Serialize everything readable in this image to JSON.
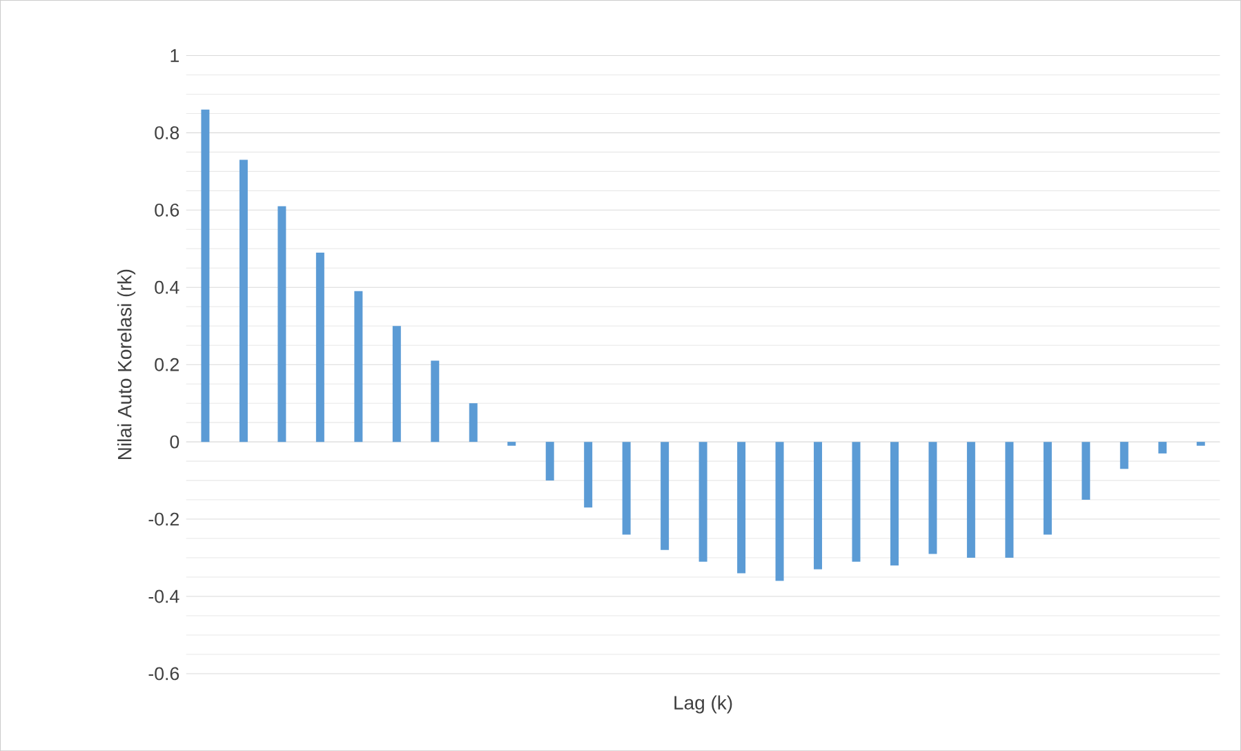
{
  "chart_data": {
    "type": "bar",
    "xlabel": "Lag (k)",
    "ylabel": "Nilai Auto Korelasi (rk)",
    "categories": [
      null,
      null,
      null,
      null,
      null,
      null,
      null,
      null,
      null,
      null,
      null,
      null,
      null,
      null,
      null,
      null,
      null,
      null,
      null,
      null,
      null,
      null,
      null,
      null,
      null,
      null,
      null
    ],
    "values": [
      0.86,
      0.73,
      0.61,
      0.49,
      0.39,
      0.3,
      0.21,
      0.1,
      -0.01,
      -0.1,
      -0.17,
      -0.24,
      -0.28,
      -0.31,
      -0.34,
      -0.36,
      -0.33,
      -0.31,
      -0.32,
      -0.29,
      -0.3,
      -0.3,
      -0.24,
      -0.15,
      -0.07,
      -0.03,
      -0.01
    ],
    "color": "#5b9bd5",
    "ylim": [
      -0.6,
      1
    ],
    "yticks": [
      -0.6,
      -0.4,
      -0.2,
      0,
      0.2,
      0.4,
      0.6,
      0.8,
      1
    ],
    "grid": "y"
  }
}
